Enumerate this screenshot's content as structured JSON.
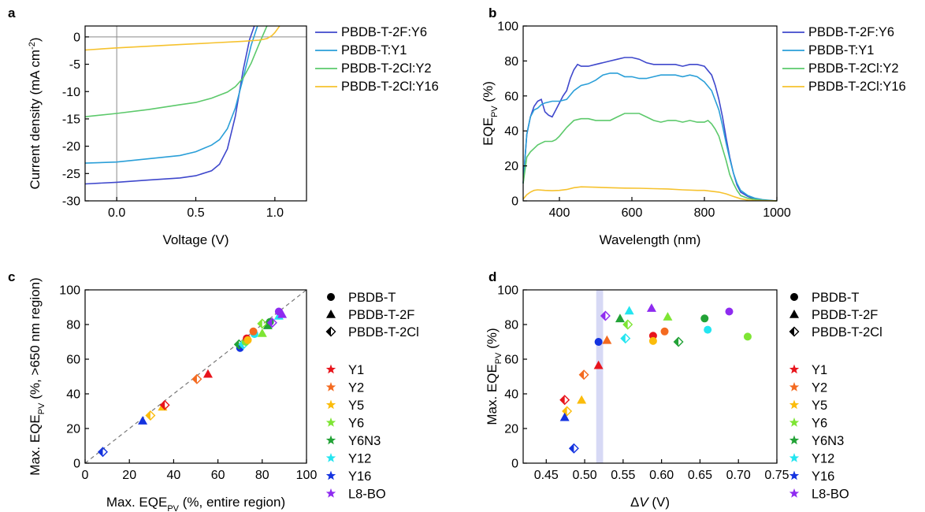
{
  "panel_labels": [
    "a",
    "b",
    "c",
    "d"
  ],
  "colors": {
    "PBDB-T-2F:Y6": "#3f48cc",
    "PBDB-T:Y1": "#2a9fd8",
    "PBDB-T-2Cl:Y2": "#5cc96b",
    "PBDB-T-2Cl:Y16": "#f6c22e",
    "Y1": "#e8141c",
    "Y2": "#f46a20",
    "Y5": "#fbbc0b",
    "Y6": "#7ee534",
    "Y6N3": "#22a236",
    "Y12": "#23e5f0",
    "Y16": "#1433e0",
    "L8-BO": "#8e2bf0"
  },
  "chart_data": [
    {
      "panel": "a",
      "type": "line",
      "xlabel": "Voltage (V)",
      "ylabel": "Current density (mA cm⁻²)",
      "xlim": [
        -0.2,
        1.2
      ],
      "ylim": [
        -30,
        2
      ],
      "xticks": [
        "0.0",
        "0.5",
        "1.0"
      ],
      "yticks": [
        "0",
        "-5",
        "-10",
        "-15",
        "-20",
        "-25",
        "-30"
      ],
      "series": [
        {
          "name": "PBDB-T-2F:Y6",
          "x": [
            -0.2,
            0.0,
            0.2,
            0.4,
            0.5,
            0.6,
            0.65,
            0.7,
            0.75,
            0.8,
            0.84,
            0.87
          ],
          "y": [
            -26.9,
            -26.6,
            -26.2,
            -25.8,
            -25.4,
            -24.5,
            -23.3,
            -20.5,
            -14.5,
            -6,
            -0.5,
            2
          ]
        },
        {
          "name": "PBDB-T:Y1",
          "x": [
            -0.2,
            0.0,
            0.2,
            0.4,
            0.5,
            0.6,
            0.65,
            0.7,
            0.75,
            0.8,
            0.85,
            0.89
          ],
          "y": [
            -23.1,
            -22.9,
            -22.3,
            -21.7,
            -21.0,
            -19.8,
            -18.8,
            -16.8,
            -13,
            -7.5,
            -1.5,
            2
          ]
        },
        {
          "name": "PBDB-T-2Cl:Y2",
          "x": [
            -0.2,
            0.0,
            0.2,
            0.4,
            0.5,
            0.6,
            0.7,
            0.75,
            0.8,
            0.85,
            0.9,
            0.95
          ],
          "y": [
            -14.6,
            -14.0,
            -13.3,
            -12.4,
            -12.0,
            -11.2,
            -10.1,
            -9.1,
            -7.5,
            -4.8,
            -1.3,
            2
          ]
        },
        {
          "name": "PBDB-T-2Cl:Y16",
          "x": [
            -0.2,
            0.0,
            0.2,
            0.4,
            0.6,
            0.8,
            0.9,
            0.95,
            0.98,
            1.0,
            1.03
          ],
          "y": [
            -2.4,
            -2.0,
            -1.7,
            -1.4,
            -1.1,
            -0.8,
            -0.6,
            -0.3,
            0.2,
            0.8,
            2
          ]
        }
      ]
    },
    {
      "panel": "b",
      "type": "line",
      "xlabel": "Wavelength (nm)",
      "ylabel": "EQE_PV (%)",
      "xlim": [
        300,
        1000
      ],
      "ylim": [
        0,
        100
      ],
      "xticks": [
        "400",
        "600",
        "800",
        "1000"
      ],
      "yticks": [
        "0",
        "20",
        "40",
        "60",
        "80",
        "100"
      ],
      "series": [
        {
          "name": "PBDB-T-2F:Y6",
          "x": [
            300,
            310,
            320,
            330,
            340,
            350,
            360,
            370,
            380,
            390,
            400,
            410,
            420,
            430,
            440,
            450,
            460,
            480,
            500,
            520,
            540,
            560,
            580,
            600,
            620,
            640,
            660,
            680,
            700,
            720,
            740,
            760,
            780,
            800,
            820,
            830,
            840,
            850,
            860,
            870,
            880,
            890,
            900,
            920,
            940,
            960,
            980,
            1000
          ],
          "y": [
            10,
            38,
            48,
            54,
            57,
            58,
            51,
            49,
            48,
            52,
            56,
            60,
            63,
            70,
            75,
            78,
            77,
            77,
            78,
            79,
            80,
            81,
            82,
            82,
            81,
            79,
            78,
            78,
            78,
            78,
            77,
            78,
            78,
            77,
            72,
            66,
            58,
            48,
            36,
            25,
            16,
            9,
            5,
            2.5,
            1,
            0.5,
            0.2,
            0
          ]
        },
        {
          "name": "PBDB-T:Y1",
          "x": [
            300,
            310,
            320,
            330,
            340,
            350,
            360,
            380,
            400,
            420,
            440,
            460,
            480,
            500,
            520,
            540,
            560,
            580,
            600,
            620,
            640,
            660,
            680,
            700,
            720,
            740,
            760,
            780,
            800,
            820,
            840,
            850,
            860,
            870,
            880,
            890,
            900,
            920,
            940,
            960,
            980,
            1000
          ],
          "y": [
            10,
            38,
            48,
            52,
            53,
            55,
            56,
            57,
            57,
            58,
            63,
            66,
            67,
            69,
            72,
            73,
            73,
            71,
            71,
            70,
            70,
            71,
            72,
            72,
            72,
            71,
            72,
            71,
            68,
            63,
            52,
            43,
            33,
            24,
            16,
            10,
            6,
            3,
            1.5,
            0.7,
            0.3,
            0
          ]
        },
        {
          "name": "PBDB-T-2Cl:Y2",
          "x": [
            300,
            310,
            320,
            330,
            340,
            350,
            360,
            370,
            380,
            390,
            400,
            420,
            440,
            460,
            480,
            500,
            520,
            540,
            560,
            580,
            600,
            620,
            640,
            660,
            680,
            700,
            720,
            740,
            760,
            780,
            800,
            810,
            820,
            830,
            840,
            850,
            860,
            870,
            880,
            890,
            900,
            920,
            940,
            960,
            1000
          ],
          "y": [
            10,
            25,
            28,
            30,
            32,
            33,
            34,
            34,
            34,
            35,
            37,
            42,
            46,
            47,
            47,
            46,
            46,
            46,
            48,
            50,
            50,
            50,
            48,
            46,
            45,
            46,
            46,
            45,
            46,
            45,
            45,
            46,
            44,
            41,
            37,
            30,
            23,
            15,
            10,
            6,
            3,
            1.5,
            0.8,
            0.3,
            0
          ]
        },
        {
          "name": "PBDB-T-2Cl:Y16",
          "x": [
            300,
            310,
            320,
            330,
            340,
            360,
            380,
            400,
            420,
            440,
            460,
            500,
            540,
            580,
            620,
            660,
            700,
            740,
            780,
            800,
            820,
            840,
            860,
            880,
            900,
            920,
            940,
            1000
          ],
          "y": [
            1,
            3.5,
            5,
            6,
            6.3,
            6,
            5.8,
            6,
            6.5,
            7.5,
            8,
            7.8,
            7.5,
            7.3,
            7.2,
            7,
            6.8,
            6.3,
            6,
            6,
            5.5,
            5,
            4,
            2.5,
            1.2,
            0.5,
            0.2,
            0
          ]
        }
      ]
    },
    {
      "panel": "c",
      "type": "scatter",
      "xlabel": "Max. EQE_PV (%, entire region)",
      "ylabel": "Max. EQE_PV (%, >650 nm region)",
      "xlim": [
        0,
        100
      ],
      "ylim": [
        0,
        100
      ],
      "xticks": [
        "0",
        "20",
        "40",
        "60",
        "80",
        "100"
      ],
      "yticks": [
        "0",
        "20",
        "40",
        "60",
        "80",
        "100"
      ],
      "diagonal": true,
      "points": [
        {
          "acc": "Y16",
          "don": "PBDB-T-2Cl",
          "x": 8,
          "y": 6.5
        },
        {
          "acc": "Y16",
          "don": "PBDB-T-2F",
          "x": 26,
          "y": 24.5
        },
        {
          "acc": "Y5",
          "don": "PBDB-T-2Cl",
          "x": 29.5,
          "y": 27.5
        },
        {
          "acc": "Y5",
          "don": "PBDB-T-2F",
          "x": 35,
          "y": 32.5
        },
        {
          "acc": "Y1",
          "don": "PBDB-T-2Cl",
          "x": 36,
          "y": 33.5
        },
        {
          "acc": "Y2",
          "don": "PBDB-T-2Cl",
          "x": 50.5,
          "y": 48.5
        },
        {
          "acc": "Y1",
          "don": "PBDB-T-2F",
          "x": 55.5,
          "y": 51.5
        },
        {
          "acc": "Y16",
          "don": "PBDB-T",
          "x": 70,
          "y": 66.5
        },
        {
          "acc": "Y6N3",
          "don": "PBDB-T-2Cl",
          "x": 69.5,
          "y": 68.5
        },
        {
          "acc": "Y12",
          "don": "PBDB-T-2Cl",
          "x": 71.5,
          "y": 68.5
        },
        {
          "acc": "Y6",
          "don": "PBDB-T",
          "x": 72.5,
          "y": 70
        },
        {
          "acc": "Y1",
          "don": "PBDB-T",
          "x": 73,
          "y": 72
        },
        {
          "acc": "Y5",
          "don": "PBDB-T",
          "x": 73.5,
          "y": 71
        },
        {
          "acc": "Y12",
          "don": "PBDB-T",
          "x": 76.5,
          "y": 74.5
        },
        {
          "acc": "Y2",
          "don": "PBDB-T",
          "x": 76,
          "y": 76
        },
        {
          "acc": "Y6",
          "don": "PBDB-T-2F",
          "x": 80,
          "y": 75
        },
        {
          "acc": "Y6N3",
          "don": "PBDB-T-2F",
          "x": 82.5,
          "y": 79.5
        },
        {
          "acc": "Y6",
          "don": "PBDB-T-2Cl",
          "x": 80,
          "y": 80.5
        },
        {
          "acc": "Y6N3",
          "don": "PBDB-T",
          "x": 83.5,
          "y": 81.5
        },
        {
          "acc": "L8-BO",
          "don": "PBDB-T-2Cl",
          "x": 84.5,
          "y": 81
        },
        {
          "acc": "Y12",
          "don": "PBDB-T-2F",
          "x": 87.5,
          "y": 85
        },
        {
          "acc": "L8-BO",
          "don": "PBDB-T",
          "x": 87.5,
          "y": 87.5
        },
        {
          "acc": "L8-BO",
          "don": "PBDB-T-2F",
          "x": 89,
          "y": 86
        }
      ]
    },
    {
      "panel": "d",
      "type": "scatter",
      "xlabel": "ΔV (V)",
      "ylabel": "Max. EQE_PV (%)",
      "xlim": [
        0.42,
        0.75
      ],
      "ylim": [
        0,
        100
      ],
      "xticks": [
        "0.45",
        "0.50",
        "0.55",
        "0.60",
        "0.65",
        "0.70",
        "0.75"
      ],
      "yticks": [
        "0",
        "20",
        "40",
        "60",
        "80",
        "100"
      ],
      "band": [
        0.515,
        0.524
      ],
      "points": [
        {
          "acc": "Y1",
          "don": "PBDB-T-2Cl",
          "x": 0.474,
          "y": 36.5
        },
        {
          "acc": "Y5",
          "don": "PBDB-T-2Cl",
          "x": 0.477,
          "y": 30
        },
        {
          "acc": "Y16",
          "don": "PBDB-T-2F",
          "x": 0.474,
          "y": 26.5
        },
        {
          "acc": "Y16",
          "don": "PBDB-T-2Cl",
          "x": 0.486,
          "y": 8.5
        },
        {
          "acc": "Y5",
          "don": "PBDB-T-2F",
          "x": 0.496,
          "y": 36.5
        },
        {
          "acc": "Y2",
          "don": "PBDB-T-2Cl",
          "x": 0.499,
          "y": 51
        },
        {
          "acc": "Y1",
          "don": "PBDB-T-2F",
          "x": 0.518,
          "y": 56.5
        },
        {
          "acc": "Y16",
          "don": "PBDB-T",
          "x": 0.518,
          "y": 70
        },
        {
          "acc": "Y2",
          "don": "PBDB-T-2F",
          "x": 0.529,
          "y": 71
        },
        {
          "acc": "L8-BO",
          "don": "PBDB-T-2Cl",
          "x": 0.527,
          "y": 85
        },
        {
          "acc": "Y6N3",
          "don": "PBDB-T-2F",
          "x": 0.546,
          "y": 83.5
        },
        {
          "acc": "Y12",
          "don": "PBDB-T-2F",
          "x": 0.558,
          "y": 88
        },
        {
          "acc": "Y6",
          "don": "PBDB-T-2Cl",
          "x": 0.556,
          "y": 80
        },
        {
          "acc": "Y12",
          "don": "PBDB-T-2Cl",
          "x": 0.553,
          "y": 72
        },
        {
          "acc": "L8-BO",
          "don": "PBDB-T-2F",
          "x": 0.587,
          "y": 89.5
        },
        {
          "acc": "Y1",
          "don": "PBDB-T",
          "x": 0.589,
          "y": 73.5
        },
        {
          "acc": "Y5",
          "don": "PBDB-T",
          "x": 0.589,
          "y": 70.5
        },
        {
          "acc": "Y2",
          "don": "PBDB-T",
          "x": 0.604,
          "y": 76
        },
        {
          "acc": "Y6",
          "don": "PBDB-T-2F",
          "x": 0.608,
          "y": 84.5
        },
        {
          "acc": "Y6N3",
          "don": "PBDB-T-2Cl",
          "x": 0.622,
          "y": 70
        },
        {
          "acc": "Y6N3",
          "don": "PBDB-T",
          "x": 0.656,
          "y": 83.5
        },
        {
          "acc": "Y12",
          "don": "PBDB-T",
          "x": 0.66,
          "y": 77
        },
        {
          "acc": "L8-BO",
          "don": "PBDB-T",
          "x": 0.688,
          "y": 87.5
        },
        {
          "acc": "Y6",
          "don": "PBDB-T",
          "x": 0.712,
          "y": 73
        }
      ]
    }
  ],
  "scatter_legend": {
    "donors": [
      {
        "label": "PBDB-T",
        "shape": "circle"
      },
      {
        "label": "PBDB-T-2F",
        "shape": "triangle"
      },
      {
        "label": "PBDB-T-2Cl",
        "shape": "half-diamond"
      }
    ],
    "acceptors": [
      "Y1",
      "Y2",
      "Y5",
      "Y6",
      "Y6N3",
      "Y12",
      "Y16",
      "L8-BO"
    ]
  }
}
